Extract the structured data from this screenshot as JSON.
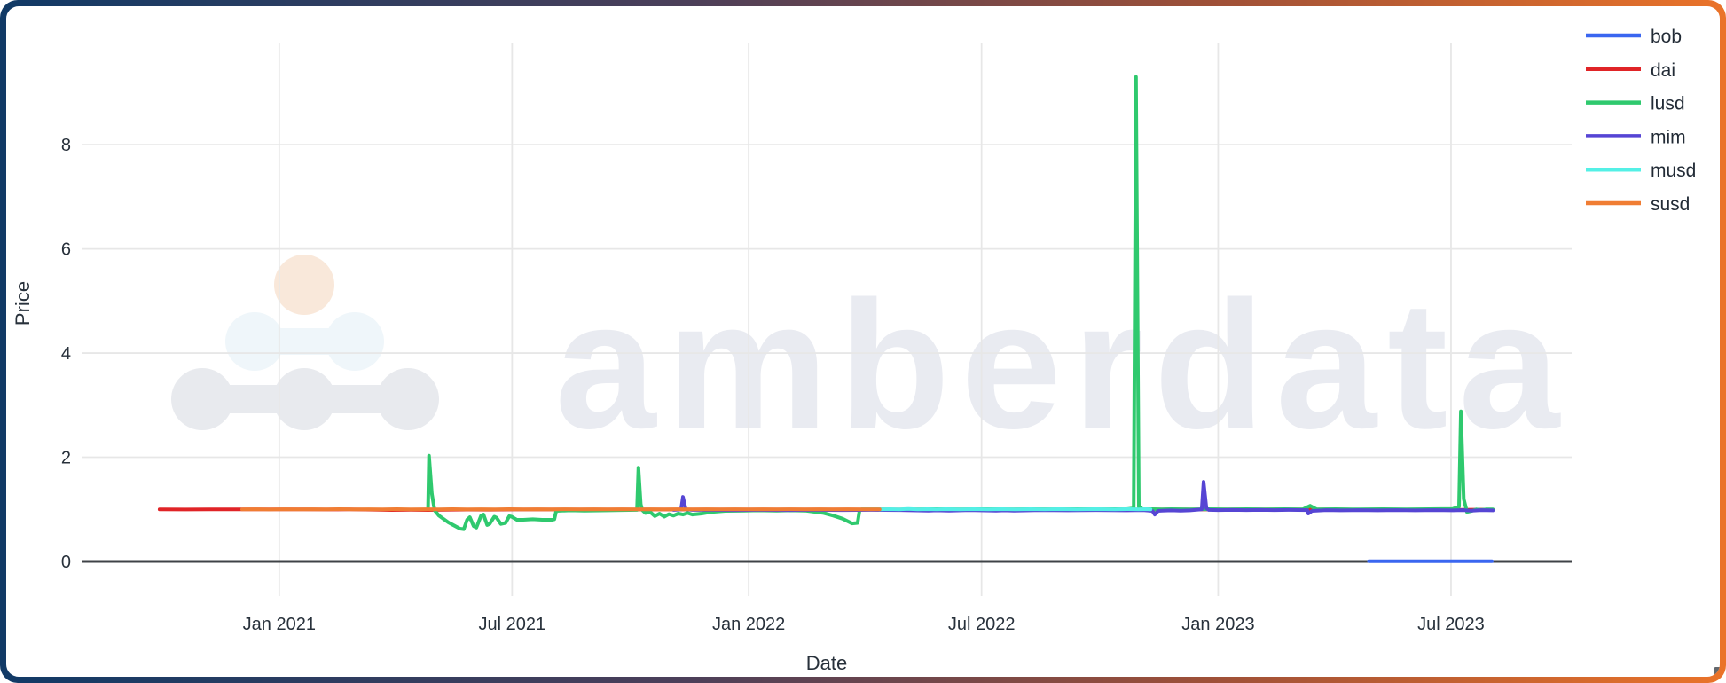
{
  "frame": {
    "gradient_start": "#113a66",
    "gradient_end": "#ea7329",
    "background": "#ffffff"
  },
  "watermark": {
    "wordmark": "amberdata",
    "wordmark_color": "#e9ebf1",
    "logo": {
      "top_circle_color": "#f9e8da",
      "middle_circles_color": "#eff6fa",
      "bottom_circles_color": "#e8eaee"
    }
  },
  "corner_handle_color": "#63686d",
  "chart_data": {
    "type": "line",
    "title": "",
    "xlabel": "Date",
    "ylabel": "Price",
    "x_domain": [
      2020.579,
      2023.753
    ],
    "y_domain": [
      0,
      9.96
    ],
    "grid": true,
    "legend_position": "top-right",
    "x_ticks": [
      {
        "v": 2021.0,
        "label": "Jan 2021"
      },
      {
        "v": 2021.496,
        "label": "Jul 2021"
      },
      {
        "v": 2022.0,
        "label": "Jan 2022"
      },
      {
        "v": 2022.496,
        "label": "Jul 2022"
      },
      {
        "v": 2023.0,
        "label": "Jan 2023"
      },
      {
        "v": 2023.496,
        "label": "Jul 2023"
      }
    ],
    "y_ticks": [
      {
        "v": 0,
        "label": "0"
      },
      {
        "v": 2,
        "label": "2"
      },
      {
        "v": 4,
        "label": "4"
      },
      {
        "v": 6,
        "label": "6"
      },
      {
        "v": 8,
        "label": "8"
      }
    ],
    "series": [
      {
        "name": "bob",
        "color": "#3a66f0",
        "points": [
          [
            2023.321,
            0.003
          ],
          [
            2023.37,
            0.003
          ],
          [
            2023.42,
            0.003
          ],
          [
            2023.47,
            0.003
          ],
          [
            2023.52,
            0.003
          ],
          [
            2023.56,
            0.003
          ],
          [
            2023.583,
            0.003
          ]
        ]
      },
      {
        "name": "dai",
        "color": "#e02427",
        "points": [
          [
            2020.745,
            1.0
          ],
          [
            2020.8,
            0.998
          ],
          [
            2020.85,
            1.0
          ],
          [
            2020.9,
            0.999
          ],
          [
            2020.95,
            1.0
          ],
          [
            2021.0,
            0.999
          ],
          [
            2021.05,
            1.0
          ],
          [
            2021.1,
            0.998
          ],
          [
            2021.15,
            1.0
          ],
          [
            2021.2,
            0.995
          ],
          [
            2021.24,
            0.988
          ],
          [
            2021.28,
            0.991
          ],
          [
            2021.317,
            0.988
          ],
          [
            2021.35,
            0.992
          ],
          [
            2021.4,
            0.996
          ],
          [
            2021.45,
            0.995
          ],
          [
            2021.5,
            0.997
          ],
          [
            2021.6,
            0.998
          ],
          [
            2021.7,
            0.997
          ],
          [
            2021.8,
            0.998
          ],
          [
            2021.9,
            0.997
          ],
          [
            2022.0,
            0.998
          ],
          [
            2022.1,
            0.997
          ],
          [
            2022.2,
            0.998
          ],
          [
            2022.3,
            0.998
          ],
          [
            2022.5,
            0.998
          ],
          [
            2022.7,
            0.998
          ],
          [
            2022.9,
            0.997
          ],
          [
            2023.0,
            0.998
          ],
          [
            2023.2,
            0.997
          ],
          [
            2023.4,
            0.995
          ],
          [
            2023.5,
            0.99
          ],
          [
            2023.55,
            0.995
          ],
          [
            2023.585,
            0.996
          ]
        ]
      },
      {
        "name": "lusd",
        "color": "#2fc96e",
        "points": [
          [
            2021.317,
            1.02
          ],
          [
            2021.319,
            2.03
          ],
          [
            2021.325,
            1.3
          ],
          [
            2021.331,
            0.98
          ],
          [
            2021.34,
            0.88
          ],
          [
            2021.36,
            0.75
          ],
          [
            2021.385,
            0.63
          ],
          [
            2021.393,
            0.62
          ],
          [
            2021.4,
            0.8
          ],
          [
            2021.406,
            0.85
          ],
          [
            2021.414,
            0.68
          ],
          [
            2021.42,
            0.65
          ],
          [
            2021.43,
            0.88
          ],
          [
            2021.435,
            0.9
          ],
          [
            2021.443,
            0.7
          ],
          [
            2021.448,
            0.72
          ],
          [
            2021.458,
            0.86
          ],
          [
            2021.463,
            0.84
          ],
          [
            2021.472,
            0.72
          ],
          [
            2021.482,
            0.74
          ],
          [
            2021.49,
            0.87
          ],
          [
            2021.495,
            0.86
          ],
          [
            2021.506,
            0.8
          ],
          [
            2021.52,
            0.8
          ],
          [
            2021.54,
            0.81
          ],
          [
            2021.56,
            0.8
          ],
          [
            2021.582,
            0.8
          ],
          [
            2021.586,
            0.81
          ],
          [
            2021.59,
            0.97
          ],
          [
            2021.62,
            0.98
          ],
          [
            2021.65,
            0.975
          ],
          [
            2021.7,
            0.98
          ],
          [
            2021.728,
            0.985
          ],
          [
            2021.762,
            0.99
          ],
          [
            2021.765,
            1.8
          ],
          [
            2021.77,
            1.1
          ],
          [
            2021.773,
            0.99
          ],
          [
            2021.78,
            0.93
          ],
          [
            2021.79,
            0.95
          ],
          [
            2021.8,
            0.87
          ],
          [
            2021.81,
            0.92
          ],
          [
            2021.82,
            0.86
          ],
          [
            2021.83,
            0.91
          ],
          [
            2021.84,
            0.88
          ],
          [
            2021.85,
            0.92
          ],
          [
            2021.86,
            0.9
          ],
          [
            2021.87,
            0.93
          ],
          [
            2021.88,
            0.9
          ],
          [
            2021.9,
            0.92
          ],
          [
            2021.92,
            0.95
          ],
          [
            2021.95,
            0.97
          ],
          [
            2021.99,
            0.975
          ],
          [
            2022.02,
            0.98
          ],
          [
            2022.06,
            0.975
          ],
          [
            2022.09,
            0.98
          ],
          [
            2022.12,
            0.975
          ],
          [
            2022.16,
            0.93
          ],
          [
            2022.18,
            0.88
          ],
          [
            2022.2,
            0.82
          ],
          [
            2022.22,
            0.73
          ],
          [
            2022.232,
            0.74
          ],
          [
            2022.236,
            0.98
          ],
          [
            2022.24,
            1.0
          ],
          [
            2022.28,
            1.0
          ],
          [
            2022.32,
            0.995
          ],
          [
            2022.36,
            1.0
          ],
          [
            2022.4,
            1.005
          ],
          [
            2022.45,
            1.0
          ],
          [
            2022.5,
            1.005
          ],
          [
            2022.55,
            1.0
          ],
          [
            2022.6,
            1.005
          ],
          [
            2022.65,
            1.0
          ],
          [
            2022.7,
            1.005
          ],
          [
            2022.75,
            1.0
          ],
          [
            2022.78,
            1.005
          ],
          [
            2022.8,
            1.0
          ],
          [
            2022.82,
            1.02
          ],
          [
            2022.825,
            9.3
          ],
          [
            2022.831,
            1.05
          ],
          [
            2022.84,
            1.0
          ],
          [
            2022.86,
            1.005
          ],
          [
            2022.88,
            1.0
          ],
          [
            2022.9,
            1.005
          ],
          [
            2022.94,
            1.0
          ],
          [
            2022.98,
            1.005
          ],
          [
            2023.02,
            1.0
          ],
          [
            2023.06,
            1.005
          ],
          [
            2023.1,
            1.0
          ],
          [
            2023.14,
            1.005
          ],
          [
            2023.18,
            1.0
          ],
          [
            2023.196,
            1.07
          ],
          [
            2023.21,
            1.0
          ],
          [
            2023.25,
            1.005
          ],
          [
            2023.3,
            1.0
          ],
          [
            2023.35,
            1.005
          ],
          [
            2023.4,
            1.0
          ],
          [
            2023.45,
            1.005
          ],
          [
            2023.5,
            1.01
          ],
          [
            2023.513,
            1.05
          ],
          [
            2023.517,
            2.88
          ],
          [
            2023.523,
            1.2
          ],
          [
            2023.53,
            0.95
          ],
          [
            2023.54,
            0.97
          ],
          [
            2023.55,
            1.0
          ],
          [
            2023.56,
            0.99
          ],
          [
            2023.57,
            1.0
          ],
          [
            2023.585,
            1.0
          ]
        ]
      },
      {
        "name": "mim",
        "color": "#5645d4",
        "points": [
          [
            2021.84,
            0.99
          ],
          [
            2021.85,
            0.995
          ],
          [
            2021.856,
            1.0
          ],
          [
            2021.86,
            1.24
          ],
          [
            2021.866,
            1.0
          ],
          [
            2021.88,
            0.99
          ],
          [
            2021.92,
            0.99
          ],
          [
            2021.97,
            0.985
          ],
          [
            2022.02,
            0.99
          ],
          [
            2022.08,
            0.985
          ],
          [
            2022.14,
            0.99
          ],
          [
            2022.2,
            0.985
          ],
          [
            2022.26,
            0.99
          ],
          [
            2022.32,
            0.985
          ],
          [
            2022.383,
            0.975
          ],
          [
            2022.4,
            0.98
          ],
          [
            2022.427,
            0.975
          ],
          [
            2022.47,
            0.985
          ],
          [
            2022.527,
            0.975
          ],
          [
            2022.545,
            0.98
          ],
          [
            2022.565,
            0.975
          ],
          [
            2022.62,
            0.985
          ],
          [
            2022.68,
            0.98
          ],
          [
            2022.74,
            0.985
          ],
          [
            2022.8,
            0.98
          ],
          [
            2022.84,
            0.985
          ],
          [
            2022.86,
            0.97
          ],
          [
            2022.865,
            0.9
          ],
          [
            2022.872,
            0.97
          ],
          [
            2022.88,
            0.975
          ],
          [
            2022.9,
            0.98
          ],
          [
            2022.92,
            0.975
          ],
          [
            2022.94,
            0.98
          ],
          [
            2022.965,
            1.0
          ],
          [
            2022.969,
            1.53
          ],
          [
            2022.975,
            1.02
          ],
          [
            2022.98,
            0.99
          ],
          [
            2023.0,
            0.985
          ],
          [
            2023.03,
            0.99
          ],
          [
            2023.06,
            0.985
          ],
          [
            2023.09,
            0.99
          ],
          [
            2023.12,
            0.985
          ],
          [
            2023.15,
            0.99
          ],
          [
            2023.19,
            0.985
          ],
          [
            2023.192,
            0.92
          ],
          [
            2023.2,
            0.97
          ],
          [
            2023.23,
            0.985
          ],
          [
            2023.26,
            0.98
          ],
          [
            2023.3,
            0.985
          ],
          [
            2023.34,
            0.98
          ],
          [
            2023.38,
            0.985
          ],
          [
            2023.42,
            0.98
          ],
          [
            2023.46,
            0.985
          ],
          [
            2023.5,
            0.98
          ],
          [
            2023.52,
            0.985
          ],
          [
            2023.54,
            0.975
          ],
          [
            2023.56,
            0.985
          ],
          [
            2023.585,
            0.98
          ]
        ]
      },
      {
        "name": "musd",
        "color": "#54f0e6",
        "points": [
          [
            2022.279,
            1.0
          ],
          [
            2022.3,
            1.005
          ],
          [
            2022.32,
            1.0
          ],
          [
            2022.34,
            1.01
          ],
          [
            2022.36,
            1.0
          ],
          [
            2022.38,
            1.005
          ],
          [
            2022.4,
            1.0
          ],
          [
            2022.42,
            1.005
          ],
          [
            2022.45,
            1.0
          ],
          [
            2022.48,
            1.005
          ],
          [
            2022.51,
            1.0
          ],
          [
            2022.54,
            1.005
          ],
          [
            2022.57,
            1.0
          ],
          [
            2022.6,
            1.005
          ],
          [
            2022.63,
            1.0
          ],
          [
            2022.66,
            1.005
          ],
          [
            2022.7,
            1.0
          ],
          [
            2022.74,
            1.005
          ],
          [
            2022.78,
            1.0
          ],
          [
            2022.81,
            1.005
          ],
          [
            2022.83,
            1.0
          ],
          [
            2022.845,
            1.005
          ],
          [
            2022.856,
            1.0
          ]
        ]
      },
      {
        "name": "susd",
        "color": "#f07d33",
        "points": [
          [
            2020.921,
            1.0
          ],
          [
            2020.95,
            1.003
          ],
          [
            2020.98,
            0.998
          ],
          [
            2021.01,
            1.002
          ],
          [
            2021.04,
            0.999
          ],
          [
            2021.07,
            1.003
          ],
          [
            2021.1,
            0.999
          ],
          [
            2021.13,
            1.004
          ],
          [
            2021.16,
            0.999
          ],
          [
            2021.19,
            1.003
          ],
          [
            2021.22,
            1.0
          ],
          [
            2021.25,
            1.004
          ],
          [
            2021.28,
            0.999
          ],
          [
            2021.31,
            1.003
          ],
          [
            2021.34,
            1.0
          ],
          [
            2021.37,
            1.004
          ],
          [
            2021.4,
            0.999
          ],
          [
            2021.43,
            1.003
          ],
          [
            2021.46,
            1.0
          ],
          [
            2021.49,
            1.004
          ],
          [
            2021.52,
            0.999
          ],
          [
            2021.55,
            1.002
          ],
          [
            2021.58,
            1.0
          ],
          [
            2021.61,
            1.003
          ],
          [
            2021.64,
            0.999
          ],
          [
            2021.67,
            1.002
          ],
          [
            2021.7,
            1.0
          ],
          [
            2021.73,
            1.003
          ],
          [
            2021.76,
            0.999
          ],
          [
            2021.79,
            1.002
          ],
          [
            2021.82,
            1.0
          ],
          [
            2021.85,
            1.003
          ],
          [
            2021.88,
            0.999
          ],
          [
            2021.91,
            1.002
          ],
          [
            2021.94,
            1.0
          ],
          [
            2021.97,
            1.003
          ],
          [
            2022.0,
            0.999
          ],
          [
            2022.03,
            1.002
          ],
          [
            2022.06,
            1.0
          ],
          [
            2022.09,
            1.003
          ],
          [
            2022.12,
            0.999
          ],
          [
            2022.15,
            1.002
          ],
          [
            2022.18,
            1.0
          ],
          [
            2022.21,
            1.003
          ],
          [
            2022.24,
            0.999
          ],
          [
            2022.279,
            1.0
          ]
        ]
      }
    ]
  }
}
